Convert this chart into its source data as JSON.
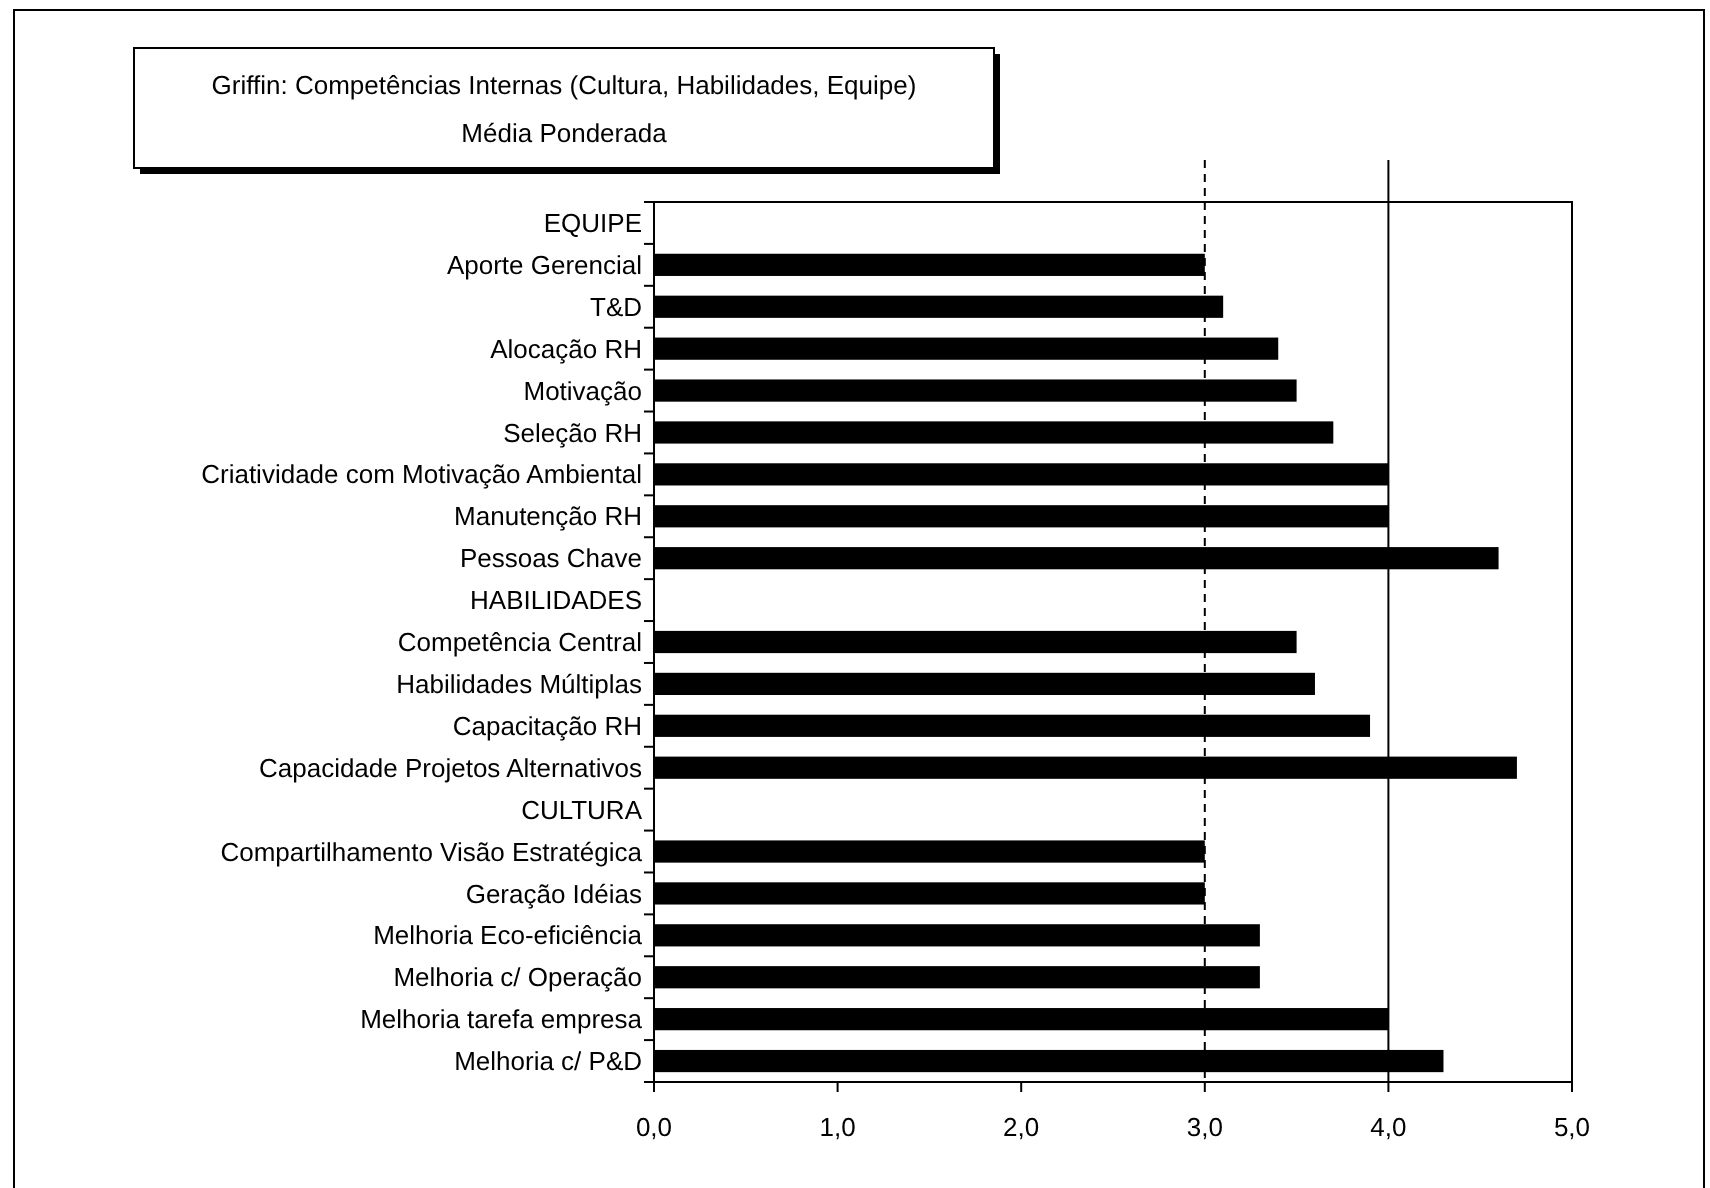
{
  "chart_data": {
    "type": "bar",
    "orientation": "horizontal",
    "title": "Griffin: Competências Internas (Cultura, Habilidades, Equipe)",
    "subtitle": "Média Ponderada",
    "categories": [
      "EQUIPE",
      "Aporte Gerencial",
      "T&D",
      "Alocação RH",
      "Motivação",
      "Seleção RH",
      "Criatividade com Motivação Ambiental",
      "Manutenção RH",
      "Pessoas Chave",
      "HABILIDADES",
      "Competência Central",
      "Habilidades Múltiplas",
      "Capacitação RH",
      "Capacidade Projetos Alternativos",
      "CULTURA",
      "Compartilhamento Visão Estratégica",
      "Geração Idéias",
      "Melhoria Eco-eficiência",
      "Melhoria c/ Operação",
      "Melhoria tarefa empresa",
      "Melhoria c/ P&D"
    ],
    "values": [
      null,
      3.0,
      3.1,
      3.4,
      3.5,
      3.7,
      4.0,
      4.0,
      4.6,
      null,
      3.5,
      3.6,
      3.9,
      4.7,
      null,
      3.0,
      3.0,
      3.3,
      3.3,
      4.0,
      4.3
    ],
    "color": "#000000",
    "xlim": [
      0,
      5
    ],
    "xticks": [
      {
        "value": 0,
        "label": "0,0"
      },
      {
        "value": 1,
        "label": "1,0"
      },
      {
        "value": 2,
        "label": "2,0"
      },
      {
        "value": 3,
        "label": "3,0"
      },
      {
        "value": 4,
        "label": "4,0"
      },
      {
        "value": 5,
        "label": "5,0"
      }
    ],
    "ref_lines": [
      {
        "axis": "x",
        "value": 3,
        "line_style": "dashed",
        "color": "#000000"
      },
      {
        "axis": "x",
        "value": 4,
        "line_style": "solid",
        "color": "#000000"
      }
    ],
    "grid": false
  }
}
